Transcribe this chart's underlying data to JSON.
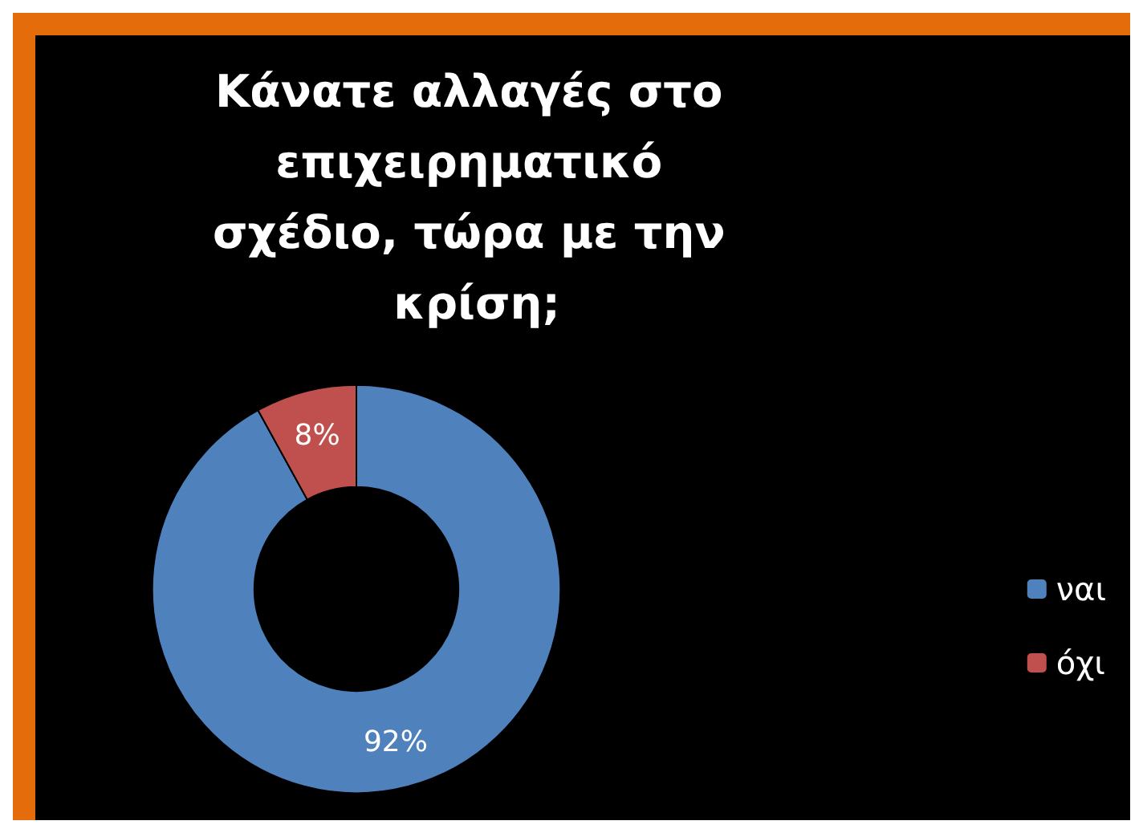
{
  "chart_data": {
    "type": "donut",
    "title": "Κάνατε αλλαγές στο επιχειρηματικό σχέδιο, τώρα με την κρίση;",
    "categories": [
      "ναι",
      "όχι"
    ],
    "values": [
      92,
      8
    ],
    "value_labels": [
      "92%",
      "8%"
    ],
    "colors": [
      "#4f81bd",
      "#c0504d"
    ],
    "legend": "right"
  }
}
